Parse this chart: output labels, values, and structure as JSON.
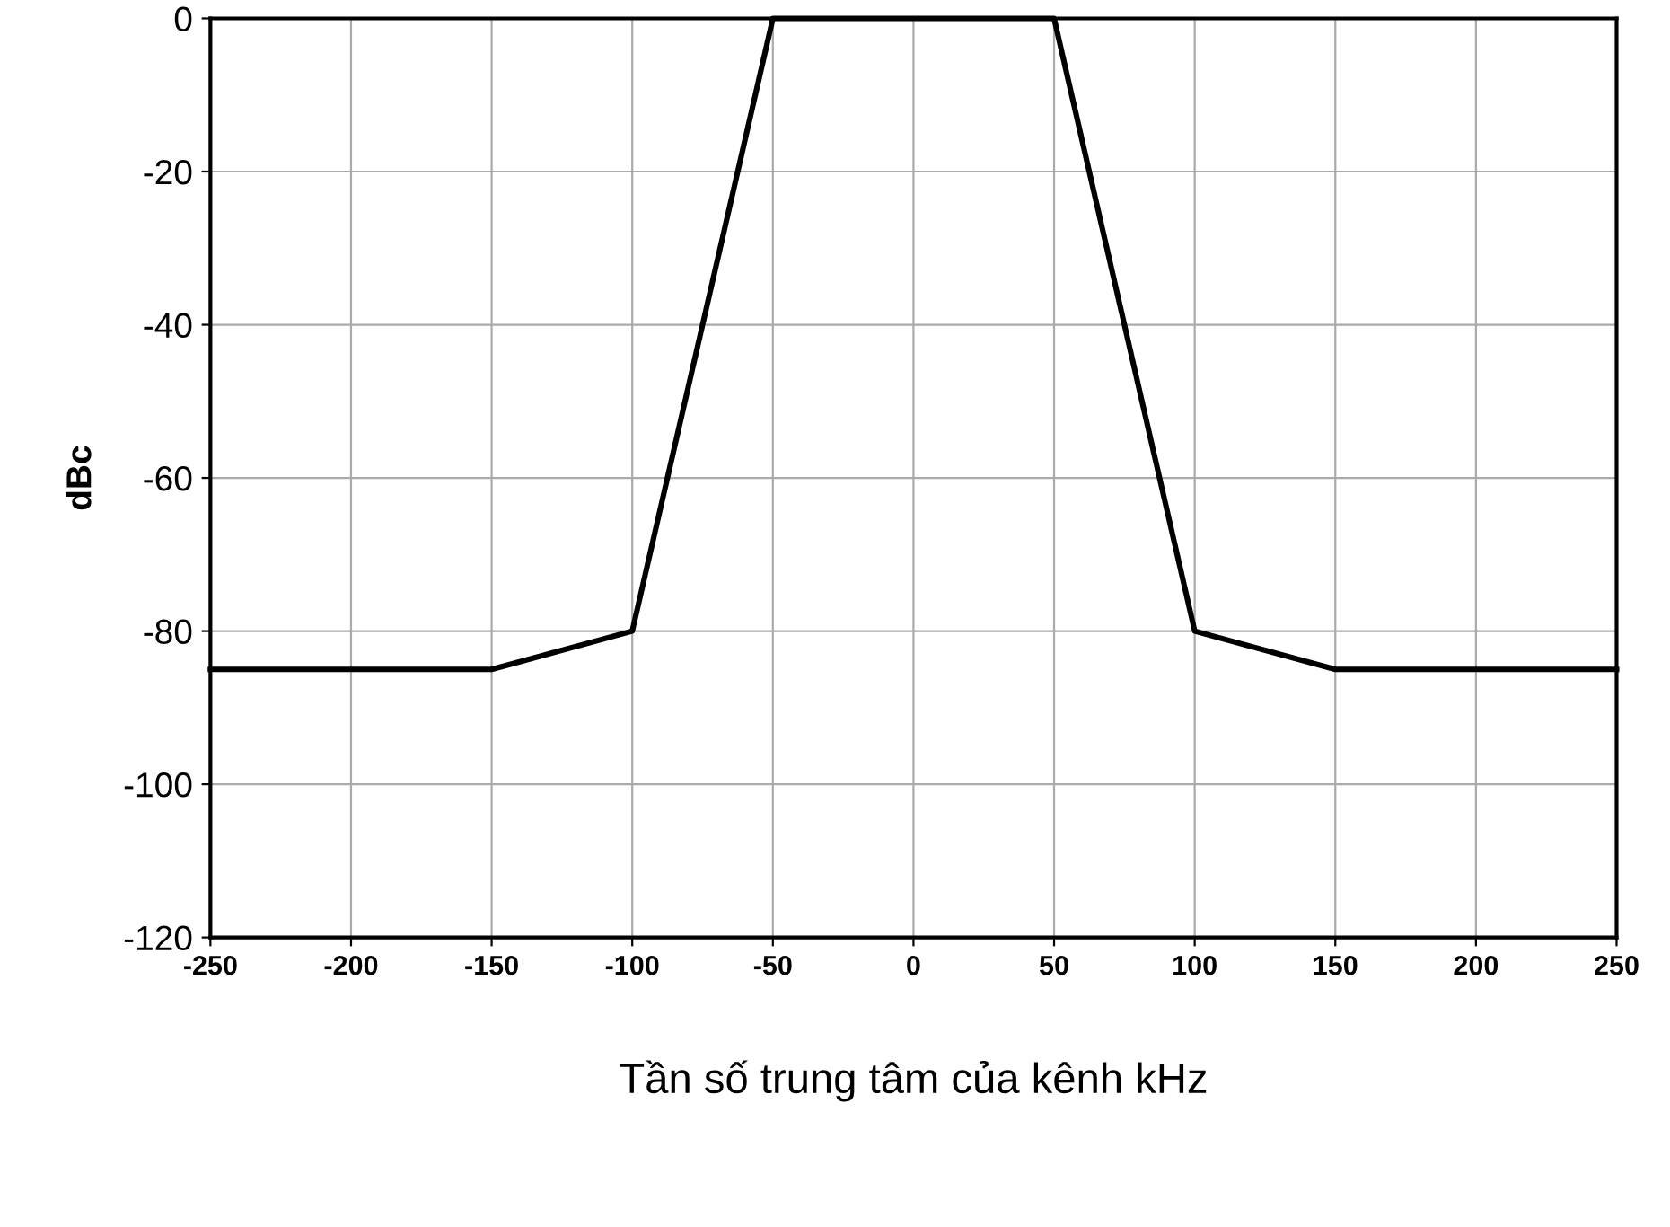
{
  "chart_data": {
    "type": "line",
    "xlabel": "Tần số trung tâm của kênh kHz",
    "ylabel": "dBc",
    "x": [
      -250,
      -150,
      -100,
      -50,
      50,
      100,
      150,
      250
    ],
    "series": [
      {
        "color": "#000000",
        "values": [
          -85,
          -85,
          -80,
          0,
          0,
          -80,
          -85,
          -85
        ]
      }
    ],
    "xlim": [
      -250,
      250
    ],
    "xticks": [
      -250,
      -200,
      -150,
      -100,
      -50,
      0,
      50,
      100,
      150,
      200,
      250
    ],
    "ylim": [
      -120,
      0
    ],
    "yticks": [
      -120,
      -100,
      -80,
      -60,
      -40,
      -20,
      0
    ],
    "grid": true,
    "marker": "none",
    "line_style": "solid"
  }
}
